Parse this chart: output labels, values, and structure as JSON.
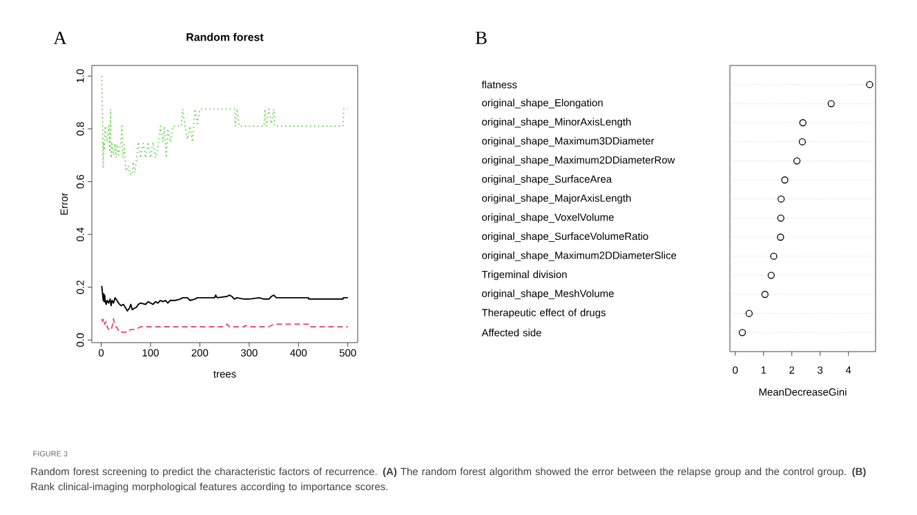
{
  "chart_data": [
    {
      "type": "line",
      "title": "Random forest",
      "xlabel": "trees",
      "ylabel": "Error",
      "xlim": [
        -19,
        520
      ],
      "ylim": [
        -0.01,
        1.04
      ],
      "xticks": [
        0,
        100,
        200,
        300,
        400,
        500
      ],
      "yticks": [
        {
          "value": 0,
          "label": "0.0"
        },
        0.2,
        0.4,
        0.6,
        0.8,
        {
          "value": 1,
          "label": "1.0"
        }
      ],
      "series": [
        {
          "color": "#000000",
          "line_style": "solid",
          "x": [
            1,
            2,
            3,
            4,
            5,
            6,
            7,
            8,
            10,
            12,
            15,
            18,
            20,
            22,
            25,
            28,
            32,
            35,
            40,
            45,
            50,
            53,
            57,
            60,
            63,
            67,
            72,
            75,
            80,
            90,
            95,
            105,
            110,
            115,
            120,
            125,
            130,
            135,
            140,
            150,
            160,
            165,
            175,
            180,
            190,
            195,
            230,
            232,
            235,
            255,
            260,
            265,
            270,
            275,
            290,
            300,
            320,
            330,
            340,
            345,
            350,
            355,
            420,
            421,
            490,
            491,
            500
          ],
          "values": [
            0.205,
            0.19,
            0.17,
            0.15,
            0.175,
            0.145,
            0.17,
            0.15,
            0.135,
            0.15,
            0.14,
            0.155,
            0.13,
            0.15,
            0.14,
            0.16,
            0.15,
            0.14,
            0.13,
            0.135,
            0.12,
            0.11,
            0.12,
            0.135,
            0.115,
            0.12,
            0.125,
            0.135,
            0.14,
            0.135,
            0.145,
            0.135,
            0.145,
            0.14,
            0.15,
            0.145,
            0.15,
            0.14,
            0.15,
            0.15,
            0.155,
            0.16,
            0.16,
            0.15,
            0.155,
            0.16,
            0.16,
            0.17,
            0.16,
            0.165,
            0.17,
            0.165,
            0.155,
            0.16,
            0.155,
            0.155,
            0.16,
            0.155,
            0.155,
            0.165,
            0.17,
            0.16,
            0.16,
            0.155,
            0.155,
            0.16,
            0.16
          ]
        },
        {
          "color": "#df536b",
          "line_style": "dashed",
          "x": [
            1,
            3,
            5,
            7,
            10,
            12,
            15,
            18,
            20,
            22,
            25,
            27,
            30,
            33,
            36,
            45,
            55,
            60,
            65,
            75,
            80,
            250,
            255,
            260,
            290,
            292,
            300,
            340,
            345,
            350,
            420,
            422,
            500
          ],
          "values": [
            0.08,
            0.07,
            0.08,
            0.06,
            0.07,
            0.05,
            0.04,
            0.045,
            0.04,
            0.05,
            0.08,
            0.06,
            0.05,
            0.045,
            0.03,
            0.03,
            0.03,
            0.04,
            0.04,
            0.045,
            0.05,
            0.05,
            0.06,
            0.05,
            0.05,
            0.055,
            0.05,
            0.05,
            0.055,
            0.06,
            0.06,
            0.05,
            0.05
          ]
        },
        {
          "color": "#61d04f",
          "line_style": "dotted",
          "x": [
            1,
            2,
            3,
            4,
            5,
            6,
            8,
            10,
            12,
            15,
            17,
            19,
            20,
            22,
            25,
            28,
            30,
            32,
            35,
            40,
            42,
            44,
            47,
            50,
            55,
            58,
            62,
            65,
            68,
            72,
            75,
            80,
            85,
            90,
            95,
            100,
            105,
            110,
            115,
            120,
            125,
            128,
            132,
            135,
            140,
            145,
            150,
            162,
            165,
            170,
            175,
            180,
            185,
            190,
            195,
            200,
            270,
            272,
            275,
            280,
            330,
            332,
            335,
            340,
            345,
            350,
            352,
            490,
            492,
            500
          ],
          "values": [
            1.0,
            0.9,
            0.8,
            0.65,
            0.75,
            0.72,
            0.81,
            0.77,
            0.75,
            0.81,
            0.72,
            0.875,
            0.69,
            0.75,
            0.7,
            0.745,
            0.69,
            0.74,
            0.7,
            0.75,
            0.81,
            0.69,
            0.74,
            0.64,
            0.66,
            0.63,
            0.625,
            0.675,
            0.635,
            0.69,
            0.75,
            0.69,
            0.745,
            0.69,
            0.75,
            0.69,
            0.75,
            0.69,
            0.73,
            0.81,
            0.75,
            0.81,
            0.69,
            0.8,
            0.75,
            0.81,
            0.81,
            0.81,
            0.875,
            0.81,
            0.76,
            0.81,
            0.75,
            0.875,
            0.82,
            0.875,
            0.875,
            0.81,
            0.875,
            0.81,
            0.81,
            0.875,
            0.81,
            0.875,
            0.82,
            0.875,
            0.81,
            0.81,
            0.875,
            0.875
          ]
        }
      ],
      "annotations": [
        "A",
        "FIGURE 3",
        "Random forest screening to predict the characteristic factors of recurrence. **(A)** The random forest algorithm showed the error between the relapse group and the control group. **(B)** Rank clinical-imaging morphological features according to importance scores."
      ]
    },
    {
      "type": "scatter",
      "orientation": "horizontal",
      "xlabel": "MeanDecreaseGini",
      "categories": [
        "flatness",
        "original_shape_Elongation",
        "original_shape_MinorAxisLength",
        "original_shape_Maximum3DDiameter",
        "original_shape_Maximum2DDiameterRow",
        "original_shape_SurfaceArea",
        "original_shape_MajorAxisLength",
        "original_shape_VoxelVolume",
        "original_shape_SurfaceVolumeRatio",
        "original_shape_Maximum2DDiameterSlice",
        "Trigeminal division",
        "original_shape_MeshVolume",
        "Therapeutic effect of drugs",
        "Affected side"
      ],
      "values": [
        4.75,
        3.39,
        2.39,
        2.37,
        2.18,
        1.75,
        1.62,
        1.61,
        1.6,
        1.36,
        1.27,
        1.05,
        0.49,
        0.25
      ],
      "color": "#000000",
      "marker": "circle",
      "grid": "y",
      "xlim": [
        -0.19,
        4.96
      ],
      "xticks": [
        0,
        1,
        2,
        3,
        4
      ],
      "annotations": [
        "B"
      ]
    }
  ]
}
